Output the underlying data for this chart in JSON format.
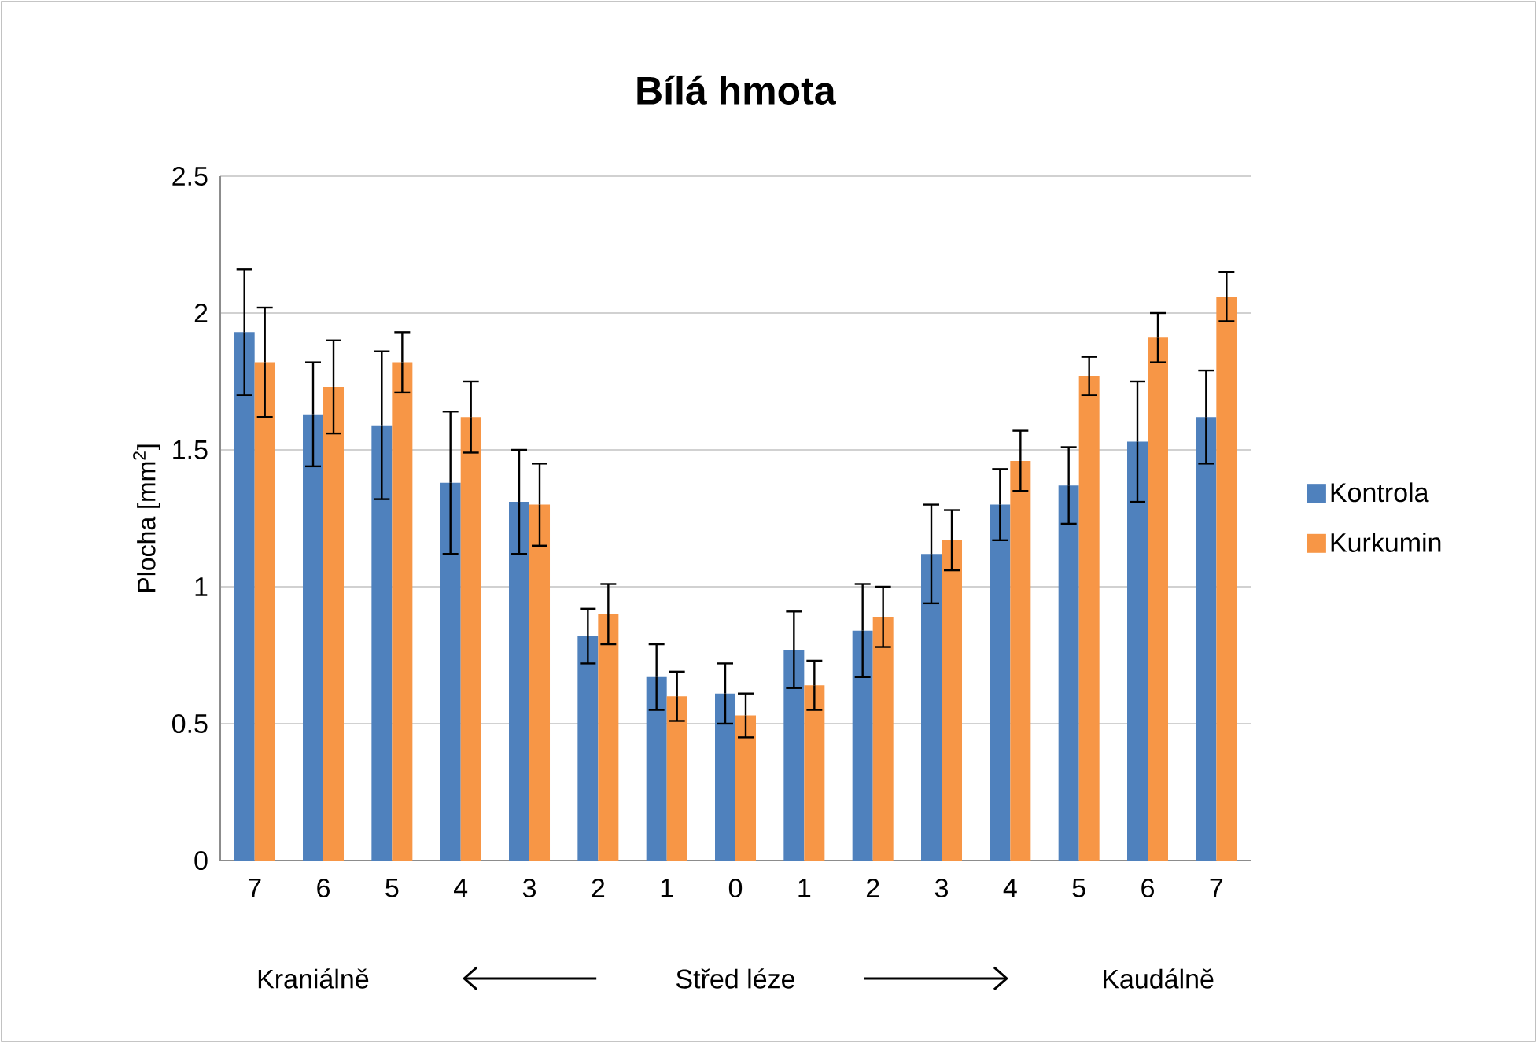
{
  "chart_data": {
    "type": "bar",
    "title": "**Bílá hmota**",
    "ylabel": "Plocha [mm$^{2}$]",
    "categories": [
      "7",
      "6",
      "5",
      "4",
      "3",
      "2",
      "1",
      "0",
      "1",
      "2",
      "3",
      "4",
      "5",
      "6",
      "7"
    ],
    "series": [
      {
        "name": "Kontrola",
        "color": "#4f81bd",
        "values": [
          1.93,
          1.63,
          1.59,
          1.38,
          1.31,
          0.82,
          0.67,
          0.61,
          0.77,
          0.84,
          1.12,
          1.3,
          1.37,
          1.53,
          1.62
        ],
        "errors": [
          0.23,
          0.19,
          0.27,
          0.26,
          0.19,
          0.1,
          0.12,
          0.11,
          0.14,
          0.17,
          0.18,
          0.13,
          0.14,
          0.22,
          0.17
        ]
      },
      {
        "name": "Kurkumin",
        "color": "#f79646",
        "values": [
          1.82,
          1.73,
          1.82,
          1.62,
          1.3,
          0.9,
          0.6,
          0.53,
          0.64,
          0.89,
          1.17,
          1.46,
          1.77,
          1.91,
          2.06
        ],
        "errors": [
          0.2,
          0.17,
          0.11,
          0.13,
          0.15,
          0.11,
          0.09,
          0.08,
          0.09,
          0.11,
          0.11,
          0.11,
          0.07,
          0.09,
          0.09
        ]
      }
    ],
    "ylim": [
      0,
      2.5
    ],
    "yticks": [
      0,
      0.5,
      1,
      1.5,
      2,
      2.5
    ],
    "grid": "y",
    "legend": "right",
    "annotations": [
      "Kraniálně",
      "Střed léze",
      "Kaudálně"
    ]
  }
}
